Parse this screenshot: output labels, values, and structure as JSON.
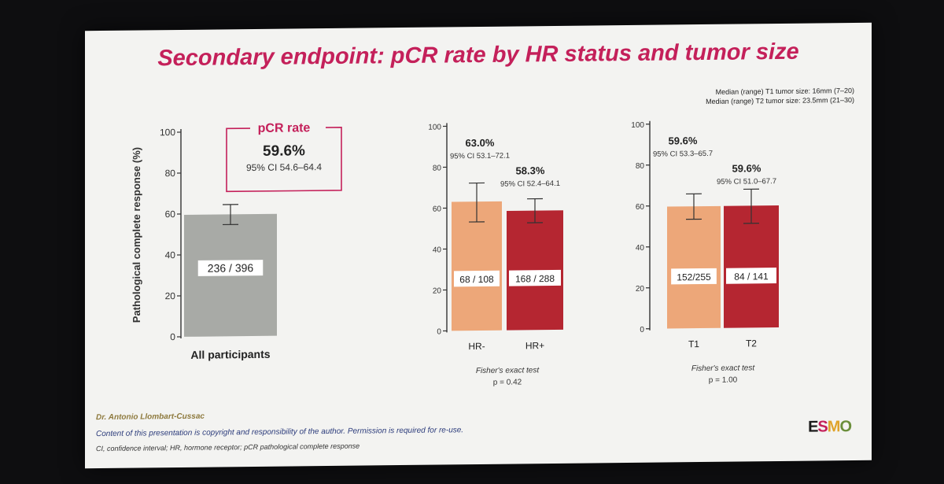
{
  "title": "Secondary endpoint: pCR rate by HR status and tumor size",
  "tumor_notes": [
    "Median (range) T1 tumor size: 16mm (7–20)",
    "Median (range) T2 tumor size: 23.5mm (21–30)"
  ],
  "footer": {
    "author": "Dr. Antonio Llombart-Cussac",
    "copyright": "Content of this presentation is copyright and responsibility of the author. Permission is required for re-use.",
    "abbreviations": "CI, confidence interval; HR, hormone receptor; pCR pathological complete response",
    "logo_letters": [
      "E",
      "S",
      "M",
      "O"
    ]
  },
  "colors": {
    "title": "#c4205a",
    "gray": "#a8aaa6",
    "orange": "#eda779",
    "red": "#b52631",
    "esmo": [
      "#1a1a1a",
      "#c4205a",
      "#e0a32a",
      "#6a8e3a"
    ]
  },
  "chart_data": [
    {
      "type": "bar",
      "ylabel": "Pathological complete response (%)",
      "ylim": [
        0,
        100
      ],
      "yticks": [
        0,
        20,
        40,
        60,
        80,
        100
      ],
      "categories": [
        "All participants"
      ],
      "values": [
        59.6
      ],
      "ci_low": [
        54.6
      ],
      "ci_high": [
        64.4
      ],
      "bar_labels": [
        "236 / 396"
      ],
      "bar_colors": [
        "#a8aaa6"
      ],
      "callout": {
        "title": "pCR rate",
        "value": "59.6%",
        "ci": "95% CI 54.6–64.4"
      }
    },
    {
      "type": "bar",
      "ylim": [
        0,
        100
      ],
      "yticks": [
        0,
        20,
        40,
        60,
        80,
        100
      ],
      "categories": [
        "HR-",
        "HR+"
      ],
      "values": [
        63.0,
        58.3
      ],
      "ci_low": [
        53.1,
        52.4
      ],
      "ci_high": [
        72.1,
        64.1
      ],
      "value_labels": [
        "63.0%",
        "58.3%"
      ],
      "ci_labels": [
        "95% CI 53.1–72.1",
        "95% CI 52.4–64.1"
      ],
      "bar_labels": [
        "68 / 108",
        "168 / 288"
      ],
      "bar_colors": [
        "#eda779",
        "#b52631"
      ],
      "test": "Fisher's exact test",
      "pvalue": "p = 0.42"
    },
    {
      "type": "bar",
      "ylim": [
        0,
        100
      ],
      "yticks": [
        0,
        20,
        40,
        60,
        80,
        100
      ],
      "categories": [
        "T1",
        "T2"
      ],
      "values": [
        59.6,
        59.6
      ],
      "ci_low": [
        53.3,
        51.0
      ],
      "ci_high": [
        65.7,
        67.7
      ],
      "value_labels": [
        "59.6%",
        "59.6%"
      ],
      "ci_labels": [
        "95% CI 53.3–65.7",
        "95% CI 51.0–67.7"
      ],
      "bar_labels": [
        "152/255",
        "84 / 141"
      ],
      "bar_colors": [
        "#eda779",
        "#b52631"
      ],
      "test": "Fisher's exact test",
      "pvalue": "p = 1.00"
    }
  ]
}
